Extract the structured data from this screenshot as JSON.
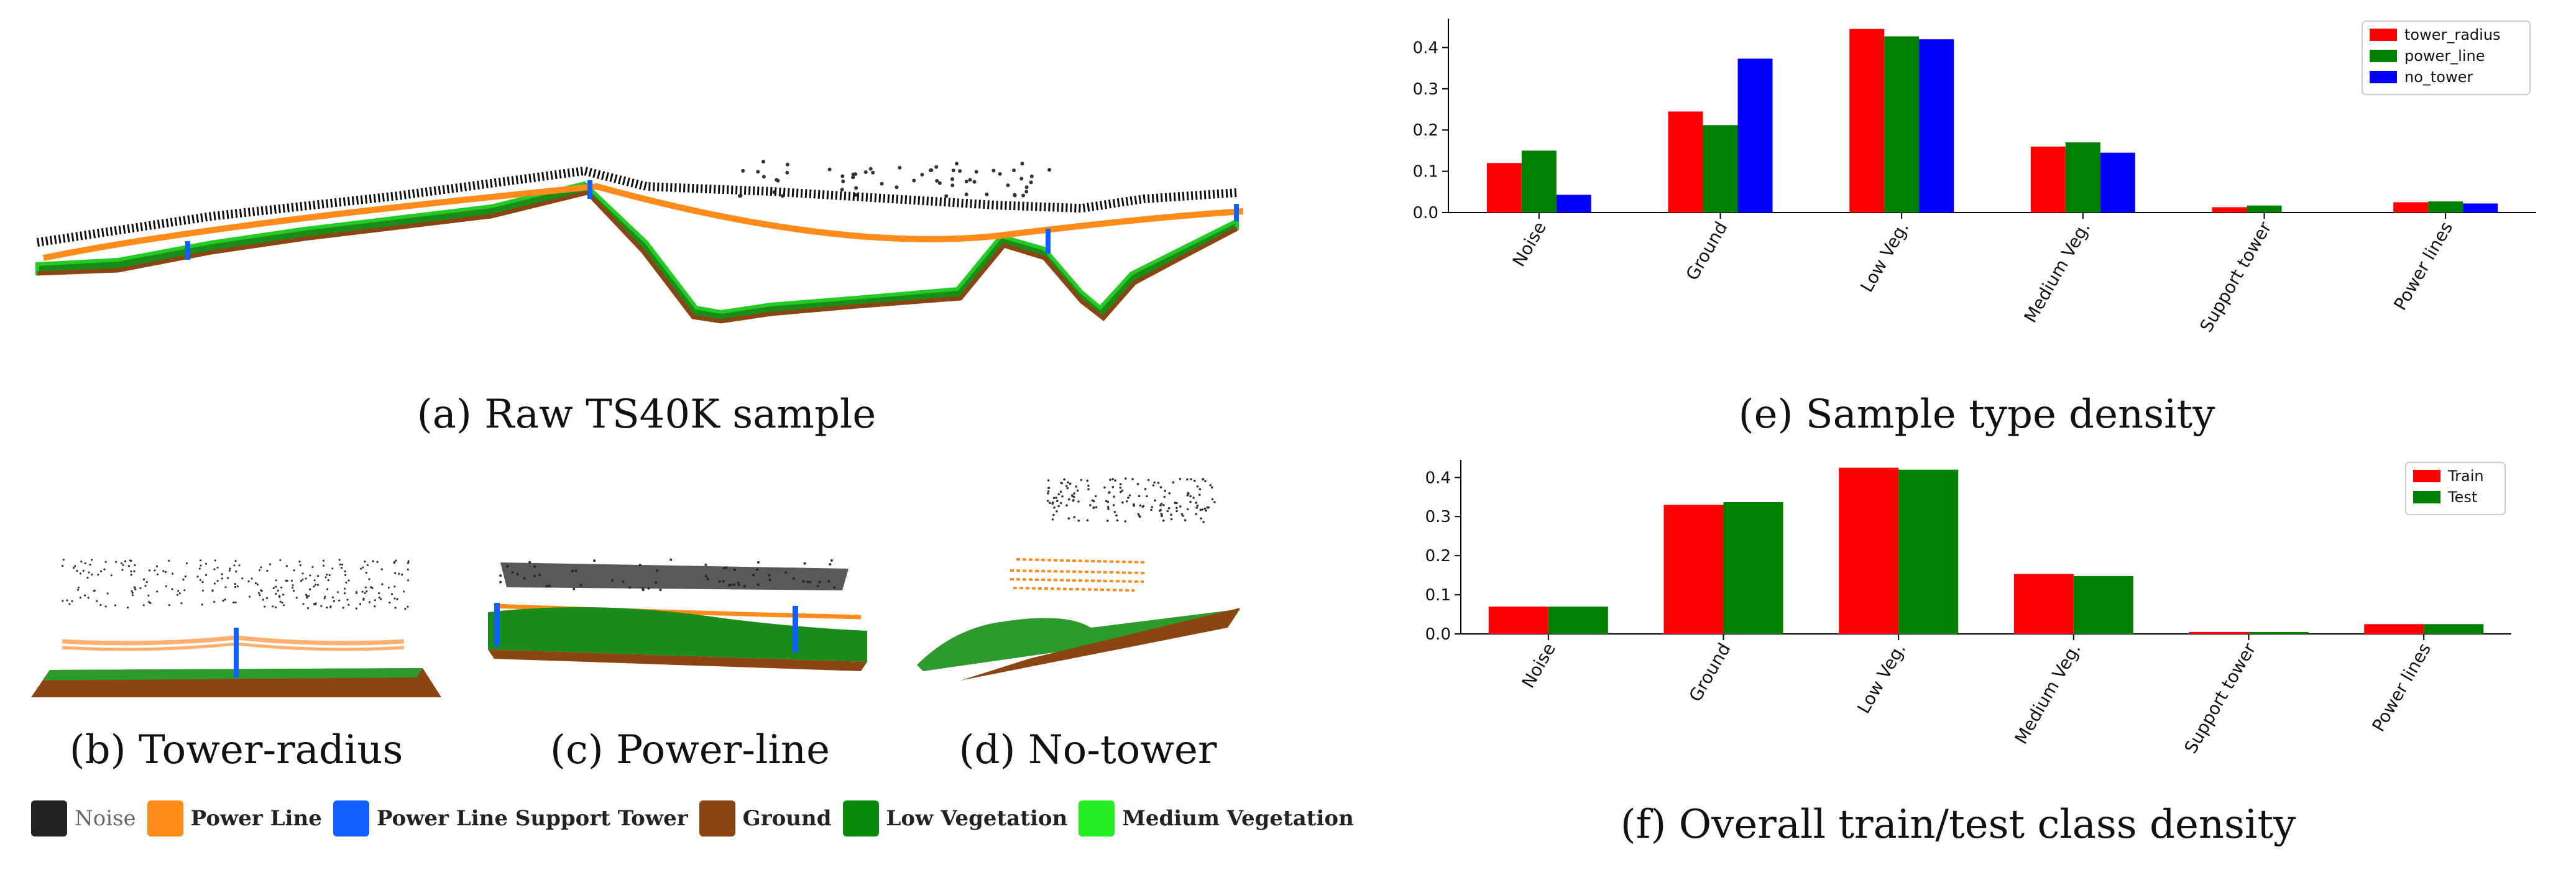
{
  "captions": {
    "a": "(a) Raw TS40K sample",
    "b": "(b) Tower-radius",
    "c": "(c) Power-line",
    "d": "(d) No-tower",
    "e": "(e) Sample type density",
    "f": "(f) Overall train/test class density"
  },
  "class_legend": [
    {
      "label": "Noise",
      "color": "#222222"
    },
    {
      "label": "Power Line",
      "color": "#ff8c1a"
    },
    {
      "label": "Power Line Support Tower",
      "color": "#1060ff"
    },
    {
      "label": "Ground",
      "color": "#8b4513"
    },
    {
      "label": "Low Vegetation",
      "color": "#0a8a0a"
    },
    {
      "label": "Medium Vegetation",
      "color": "#22ee22"
    }
  ],
  "chart_data": [
    {
      "id": "e",
      "type": "bar",
      "categories": [
        "Noise",
        "Ground",
        "Low Veg.",
        "Medium Veg.",
        "Support tower",
        "Power lines"
      ],
      "series": [
        {
          "name": "tower_radius",
          "color": "#ff0000",
          "values": [
            0.12,
            0.245,
            0.445,
            0.16,
            0.013,
            0.025
          ]
        },
        {
          "name": "power_line",
          "color": "#008000",
          "values": [
            0.15,
            0.212,
            0.427,
            0.17,
            0.017,
            0.027
          ]
        },
        {
          "name": "no_tower",
          "color": "#0000ff",
          "values": [
            0.043,
            0.373,
            0.42,
            0.145,
            0.0,
            0.022
          ]
        }
      ],
      "yticks": [
        "0.0",
        "0.1",
        "0.2",
        "0.3",
        "0.4"
      ],
      "ylim": [
        0,
        0.47
      ],
      "legend": "top-right",
      "grid": false
    },
    {
      "id": "f",
      "type": "bar",
      "categories": [
        "Noise",
        "Ground",
        "Low Veg.",
        "Medium Veg.",
        "Support tower",
        "Power lines"
      ],
      "series": [
        {
          "name": "Train",
          "color": "#ff0000",
          "values": [
            0.07,
            0.33,
            0.425,
            0.153,
            0.005,
            0.025
          ]
        },
        {
          "name": "Test",
          "color": "#008000",
          "values": [
            0.07,
            0.337,
            0.42,
            0.148,
            0.005,
            0.025
          ]
        }
      ],
      "yticks": [
        "0.0",
        "0.1",
        "0.2",
        "0.3",
        "0.4"
      ],
      "ylim": [
        0,
        0.445
      ],
      "legend": "top-right",
      "grid": false
    }
  ]
}
